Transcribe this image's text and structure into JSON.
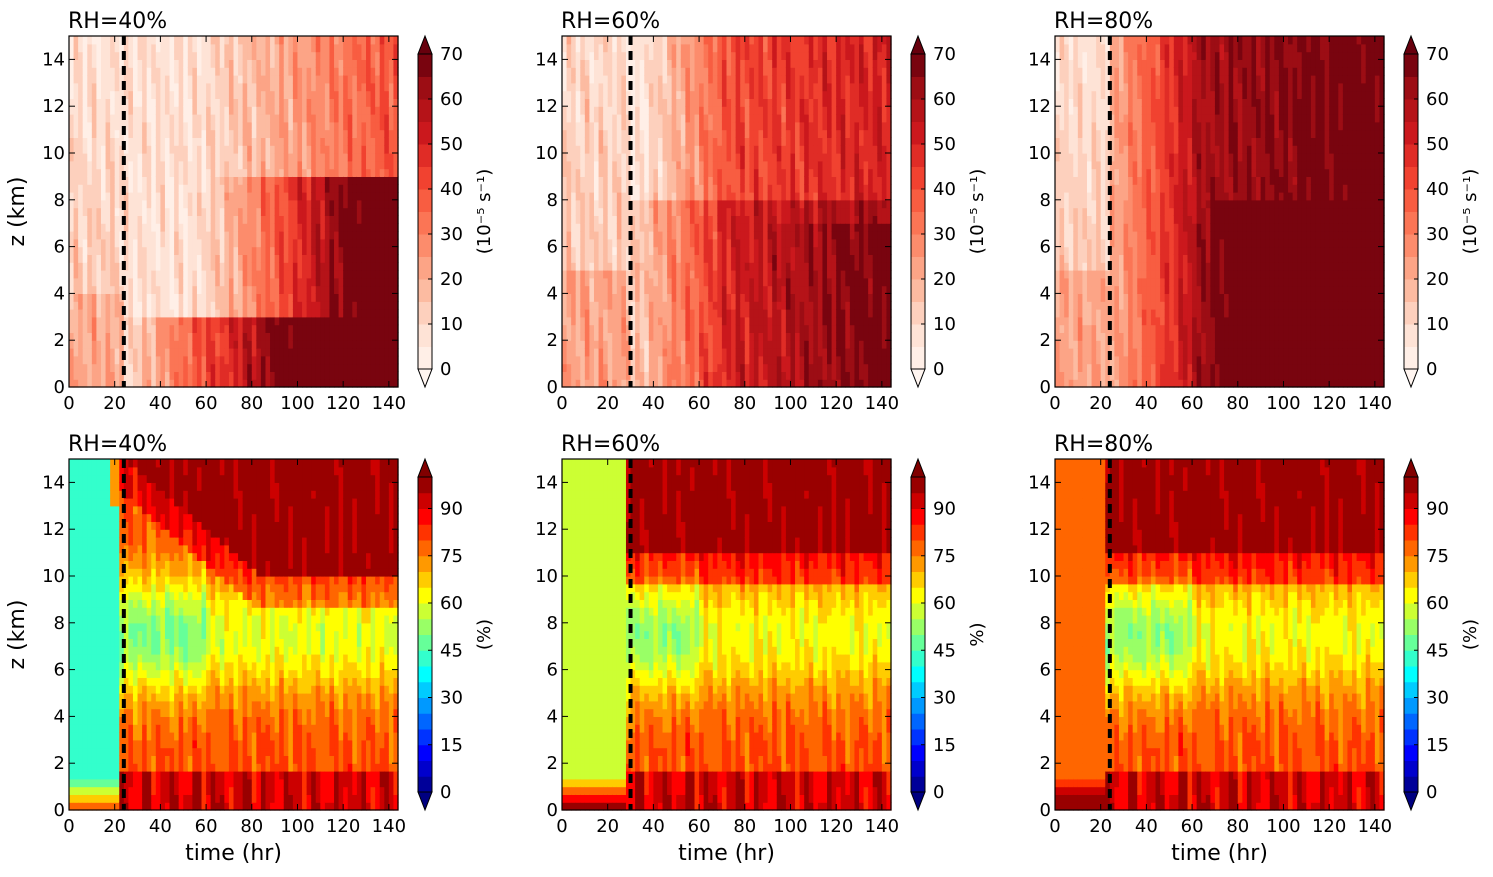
{
  "chart_data": [
    {
      "type": "heatmap",
      "title": "RH=40%",
      "ylabel": "z (km)",
      "xlabel": "",
      "xlim": [
        0,
        144
      ],
      "ylim": [
        0,
        15
      ],
      "x_ticks": [
        "0",
        "20",
        "40",
        "60",
        "80",
        "100",
        "120",
        "140"
      ],
      "y_ticks": [
        "0",
        "2",
        "4",
        "6",
        "8",
        "10",
        "12",
        "14"
      ],
      "colorbar": {
        "label": "(10⁻⁵ s⁻¹)",
        "ticks": [
          "0",
          "10",
          "20",
          "30",
          "40",
          "50",
          "60",
          "70"
        ],
        "range": [
          0,
          70
        ],
        "cmap": "Reds"
      },
      "marker_line_x": 24
    },
    {
      "type": "heatmap",
      "title": "RH=60%",
      "ylabel": "",
      "xlabel": "",
      "xlim": [
        0,
        144
      ],
      "ylim": [
        0,
        15
      ],
      "x_ticks": [
        "0",
        "20",
        "40",
        "60",
        "80",
        "100",
        "120",
        "140"
      ],
      "y_ticks": [
        "0",
        "2",
        "4",
        "6",
        "8",
        "10",
        "12",
        "14"
      ],
      "colorbar": {
        "label": "(10⁻⁵ s⁻¹)",
        "ticks": [
          "0",
          "10",
          "20",
          "30",
          "40",
          "50",
          "60",
          "70"
        ],
        "range": [
          0,
          70
        ],
        "cmap": "Reds"
      },
      "marker_line_x": 30
    },
    {
      "type": "heatmap",
      "title": "RH=80%",
      "ylabel": "",
      "xlabel": "",
      "xlim": [
        0,
        144
      ],
      "ylim": [
        0,
        15
      ],
      "x_ticks": [
        "0",
        "20",
        "40",
        "60",
        "80",
        "100",
        "120",
        "140"
      ],
      "y_ticks": [
        "0",
        "2",
        "4",
        "6",
        "8",
        "10",
        "12",
        "14"
      ],
      "colorbar": {
        "label": "(10⁻⁵ s⁻¹)",
        "ticks": [
          "0",
          "10",
          "20",
          "30",
          "40",
          "50",
          "60",
          "70"
        ],
        "range": [
          0,
          70
        ],
        "cmap": "Reds"
      },
      "marker_line_x": 24
    },
    {
      "type": "heatmap",
      "title": "RH=40%",
      "ylabel": "z (km)",
      "xlabel": "time (hr)",
      "xlim": [
        0,
        144
      ],
      "ylim": [
        0,
        15
      ],
      "x_ticks": [
        "0",
        "20",
        "40",
        "60",
        "80",
        "100",
        "120",
        "140"
      ],
      "y_ticks": [
        "0",
        "2",
        "4",
        "6",
        "8",
        "10",
        "12",
        "14"
      ],
      "colorbar": {
        "label": "(%)",
        "ticks": [
          "0",
          "15",
          "30",
          "45",
          "60",
          "75",
          "90"
        ],
        "range": [
          0,
          100
        ],
        "cmap": "jet"
      },
      "marker_line_x": 24
    },
    {
      "type": "heatmap",
      "title": "RH=60%",
      "ylabel": "",
      "xlabel": "time (hr)",
      "xlim": [
        0,
        144
      ],
      "ylim": [
        0,
        15
      ],
      "x_ticks": [
        "0",
        "20",
        "40",
        "60",
        "80",
        "100",
        "120",
        "140"
      ],
      "y_ticks": [
        "0",
        "2",
        "4",
        "6",
        "8",
        "10",
        "12",
        "14"
      ],
      "colorbar": {
        "label": "%)",
        "ticks": [
          "0",
          "15",
          "30",
          "45",
          "60",
          "75",
          "90"
        ],
        "range": [
          0,
          100
        ],
        "cmap": "jet"
      },
      "marker_line_x": 30
    },
    {
      "type": "heatmap",
      "title": "RH=80%",
      "ylabel": "",
      "xlabel": "time (hr)",
      "xlim": [
        0,
        144
      ],
      "ylim": [
        0,
        15
      ],
      "x_ticks": [
        "0",
        "20",
        "40",
        "60",
        "80",
        "100",
        "120",
        "140"
      ],
      "y_ticks": [
        "0",
        "2",
        "4",
        "6",
        "8",
        "10",
        "12",
        "14"
      ],
      "colorbar": {
        "label": "(%)",
        "ticks": [
          "0",
          "15",
          "30",
          "45",
          "60",
          "75",
          "90"
        ],
        "range": [
          0,
          100
        ],
        "cmap": "jet"
      },
      "marker_line_x": 24
    }
  ]
}
